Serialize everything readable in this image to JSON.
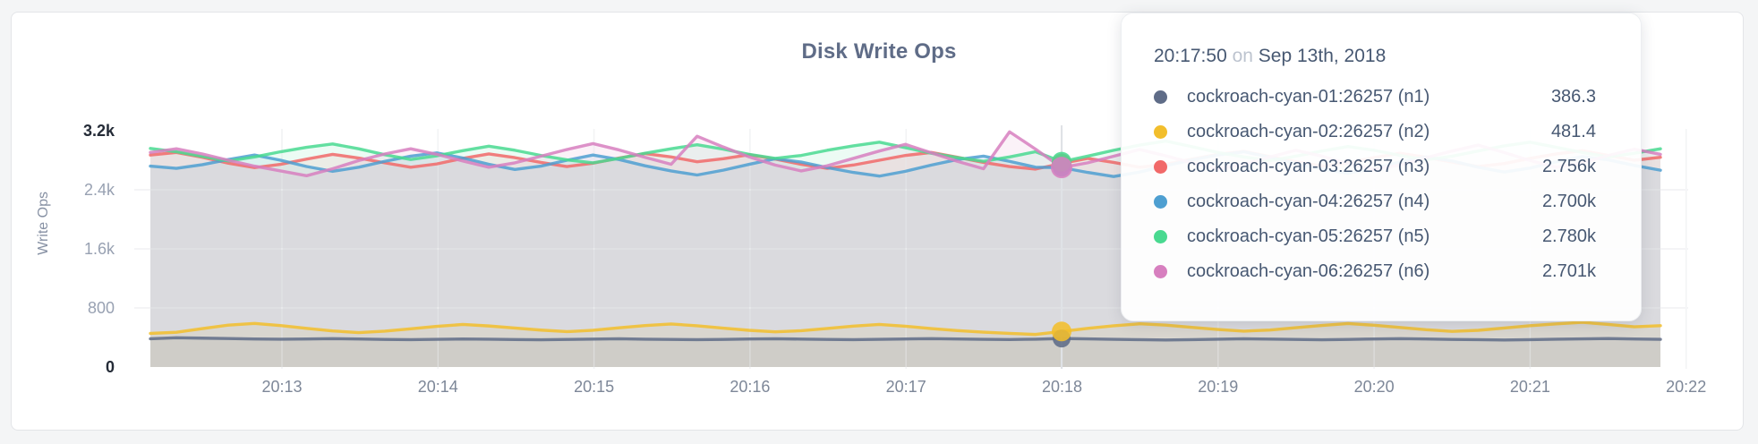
{
  "card": {
    "title": "Disk Write Ops"
  },
  "y_axis": {
    "title": "Write Ops",
    "ticks": [
      {
        "label": "0",
        "value": 0,
        "strong": true,
        "line": false
      },
      {
        "label": "800",
        "value": 800,
        "strong": false,
        "line": true
      },
      {
        "label": "1.6k",
        "value": 1600,
        "strong": false,
        "line": true
      },
      {
        "label": "2.4k",
        "value": 2400,
        "strong": false,
        "line": true
      },
      {
        "label": "3.2k",
        "value": 3200,
        "strong": true,
        "line": false
      }
    ]
  },
  "x_axis": {
    "ticks": [
      "20:13",
      "20:14",
      "20:15",
      "20:16",
      "20:17",
      "20:18",
      "20:19",
      "20:20",
      "20:21",
      "20:22"
    ]
  },
  "tooltip": {
    "time": "20:17:50",
    "conj": "on",
    "date": "Sep 13th, 2018",
    "rows": [
      {
        "label": "cockroach-cyan-01:26257 (n1)",
        "value": "386.3",
        "color": "#5F6C87"
      },
      {
        "label": "cockroach-cyan-02:26257 (n2)",
        "value": "481.4",
        "color": "#F2BE2C"
      },
      {
        "label": "cockroach-cyan-03:26257 (n3)",
        "value": "2.756k",
        "color": "#F16969"
      },
      {
        "label": "cockroach-cyan-04:26257 (n4)",
        "value": "2.700k",
        "color": "#4E9FD1"
      },
      {
        "label": "cockroach-cyan-05:26257 (n5)",
        "value": "2.780k",
        "color": "#49D990"
      },
      {
        "label": "cockroach-cyan-06:26257 (n6)",
        "value": "2.701k",
        "color": "#D77FBF"
      }
    ]
  },
  "chart_data": {
    "type": "area",
    "title": "Disk Write Ops",
    "ylabel": "Write Ops",
    "ylim": [
      0,
      3200
    ],
    "grid": true,
    "x_start": "20:12:00",
    "x_interval_seconds": 10,
    "x_tick_labels": [
      "20:13",
      "20:14",
      "20:15",
      "20:16",
      "20:17",
      "20:18",
      "20:19",
      "20:20",
      "20:21",
      "20:22"
    ],
    "hover_index": 35,
    "hover_time": "20:17:50",
    "series": [
      {
        "name": "cockroach-cyan-01:26257 (n1)",
        "color": "#5F6C87",
        "hover_value": 386.3,
        "dot_r": 10,
        "values": [
          382,
          396,
          391,
          385,
          379,
          376,
          380,
          384,
          379,
          374,
          371,
          375,
          380,
          376,
          372,
          369,
          373,
          378,
          382,
          377,
          373,
          370,
          374,
          379,
          383,
          378,
          374,
          371,
          375,
          380,
          384,
          379,
          375,
          372,
          377,
          386.3,
          381,
          375,
          370,
          366,
          371,
          377,
          382,
          378,
          373,
          369,
          374,
          380,
          384,
          379,
          374,
          370,
          366,
          370,
          376,
          381,
          385,
          380,
          375
        ]
      },
      {
        "name": "cockroach-cyan-02:26257 (n2)",
        "color": "#F2BE2C",
        "hover_value": 481.4,
        "dot_r": 11,
        "values": [
          455,
          470,
          521,
          568,
          590,
          562,
          523,
          489,
          466,
          485,
          517,
          551,
          576,
          556,
          528,
          500,
          479,
          498,
          531,
          562,
          583,
          558,
          527,
          497,
          476,
          492,
          522,
          554,
          577,
          552,
          521,
          493,
          472,
          455,
          441,
          481.4,
          524,
          558,
          585,
          567,
          537,
          508,
          486,
          501,
          532,
          563,
          588,
          566,
          535,
          505,
          483,
          497,
          528,
          560,
          584,
          605,
          577,
          545,
          560
        ]
      },
      {
        "name": "cockroach-cyan-03:26257 (n3)",
        "color": "#F16969",
        "hover_value": 2756,
        "dot_r": 11,
        "values": [
          2870,
          2905,
          2840,
          2760,
          2700,
          2745,
          2815,
          2880,
          2830,
          2765,
          2705,
          2750,
          2825,
          2885,
          2835,
          2770,
          2715,
          2760,
          2830,
          2890,
          2845,
          2780,
          2820,
          2875,
          2815,
          2745,
          2690,
          2735,
          2800,
          2865,
          2905,
          2840,
          2770,
          2715,
          2680,
          2756,
          2825,
          2770,
          2705,
          2745,
          2815,
          2880,
          2920,
          2850,
          2780,
          2720,
          2765,
          2835,
          2895,
          2840,
          2775,
          2715,
          2755,
          2825,
          2885,
          2930,
          2865,
          2800,
          2840
        ]
      },
      {
        "name": "cockroach-cyan-04:26257 (n4)",
        "color": "#4E9FD1",
        "hover_value": 2700,
        "dot_r": 10,
        "values": [
          2720,
          2690,
          2740,
          2810,
          2870,
          2800,
          2715,
          2650,
          2705,
          2785,
          2855,
          2900,
          2830,
          2745,
          2675,
          2720,
          2800,
          2870,
          2810,
          2725,
          2655,
          2600,
          2665,
          2745,
          2820,
          2775,
          2700,
          2635,
          2585,
          2650,
          2735,
          2810,
          2855,
          2785,
          2705,
          2700,
          2635,
          2580,
          2640,
          2725,
          2805,
          2870,
          2915,
          2840,
          2755,
          2680,
          2625,
          2690,
          2775,
          2845,
          2790,
          2705,
          2640,
          2695,
          2780,
          2850,
          2805,
          2730,
          2665
        ]
      },
      {
        "name": "cockroach-cyan-05:26257 (n5)",
        "color": "#49D990",
        "hover_value": 2780,
        "dot_r": 11,
        "values": [
          2960,
          2915,
          2850,
          2790,
          2845,
          2915,
          2975,
          3020,
          2955,
          2875,
          2810,
          2860,
          2930,
          2990,
          2935,
          2865,
          2805,
          2765,
          2825,
          2895,
          2955,
          3010,
          2950,
          2880,
          2825,
          2865,
          2935,
          2995,
          3045,
          2970,
          2895,
          2835,
          2785,
          2845,
          2915,
          2780,
          2855,
          2935,
          3005,
          3060,
          2985,
          2905,
          2845,
          2795,
          2855,
          2925,
          2985,
          2935,
          2865,
          2805,
          2855,
          2925,
          2995,
          3045,
          2975,
          2905,
          2845,
          2895,
          2955
        ]
      },
      {
        "name": "cockroach-cyan-06:26257 (n6)",
        "color": "#D77FBF",
        "hover_value": 2701,
        "dot_r": 12,
        "values": [
          2905,
          2955,
          2885,
          2800,
          2720,
          2655,
          2590,
          2685,
          2795,
          2885,
          2955,
          2880,
          2790,
          2705,
          2765,
          2855,
          2945,
          3025,
          2940,
          2840,
          2745,
          3125,
          2980,
          2845,
          2735,
          2655,
          2725,
          2825,
          2925,
          3015,
          2900,
          2785,
          2685,
          3185,
          2950,
          2701,
          2765,
          2855,
          2945,
          2860,
          2765,
          2685,
          2745,
          2845,
          2935,
          2855,
          2755,
          2675,
          2735,
          2835,
          2925,
          3005,
          2905,
          2795,
          2705,
          2765,
          2865,
          2950,
          2880
        ]
      }
    ]
  }
}
